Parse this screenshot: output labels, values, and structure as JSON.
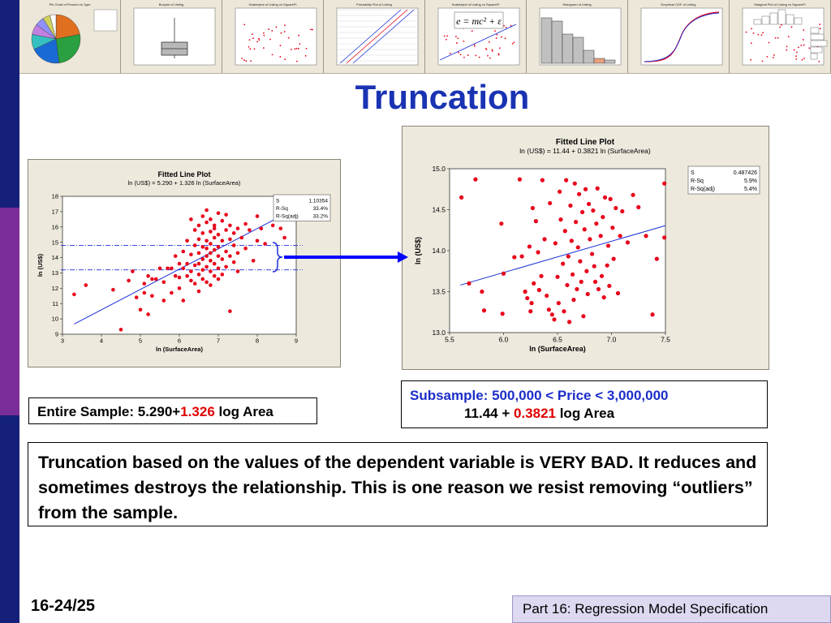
{
  "title": "Truncation",
  "colors": {
    "accent": "#1a33b3",
    "highlight": "#e00000",
    "points": "#e8001a",
    "fit_line": "#1a2fd6"
  },
  "thumbnails": [
    {
      "label": "Pie Chart of Percent vs Type",
      "kind": "pie"
    },
    {
      "label": "Boxplot of Listing",
      "kind": "boxplot"
    },
    {
      "label": "Scatterplot of Listing vs SquareFt",
      "kind": "scatter"
    },
    {
      "label": "Probability Plot of Listing",
      "kind": "probability"
    },
    {
      "label": "Scatterplot of Listing vs SquareFt",
      "kind": "equation",
      "equation": "e = mc² + ε"
    },
    {
      "label": "Histogram of Listing",
      "kind": "histogram"
    },
    {
      "label": "Empirical CDF of Listing",
      "kind": "cdf"
    },
    {
      "label": "Marginal Plot of Listing vs SquareFt",
      "kind": "marginal"
    }
  ],
  "left_caption": {
    "prefix": "Entire Sample: 5.290+",
    "coef": "1.326",
    "suffix": " log Area"
  },
  "right_caption": {
    "line1": "Subsample: 500,000 < Price < 3,000,000",
    "line2_prefix": "11.44 + ",
    "coef": "0.3821",
    "line2_suffix": " log Area"
  },
  "note": "Truncation based on the values of the dependent variable is VERY BAD. It reduces and sometimes destroys the relationship.  This is one reason we resist removing “outliers” from the sample.",
  "slide_number": "16-24/25",
  "footer": "Part 16: Regression Model Specification",
  "chart_data": [
    {
      "type": "scatter",
      "title": "Fitted Line Plot",
      "subtitle": "ln (US$) =  5.290 + 1.326 ln (SurfaceArea)",
      "xlabel": "ln (SurfaceArea)",
      "ylabel": "ln (US$)",
      "xlim": [
        3,
        9
      ],
      "ylim": [
        9,
        18
      ],
      "x_ticks": [
        3,
        4,
        5,
        6,
        7,
        8,
        9
      ],
      "y_ticks": [
        9,
        10,
        11,
        12,
        13,
        14,
        15,
        16,
        17,
        18
      ],
      "fit": {
        "intercept": 5.29,
        "slope": 1.326,
        "x_range": [
          3.3,
          8.7
        ]
      },
      "truncation_lines": [
        13.2,
        14.8
      ],
      "stats": [
        {
          "label": "S",
          "value": "1.10354"
        },
        {
          "label": "R-Sq",
          "value": "33.4%"
        },
        {
          "label": "R-Sq(adj)",
          "value": "33.2%"
        }
      ],
      "grid": false,
      "legend": "stats box top-right",
      "points": [
        [
          3.3,
          11.6
        ],
        [
          3.6,
          12.2
        ],
        [
          4.3,
          11.9
        ],
        [
          4.5,
          9.3
        ],
        [
          4.8,
          13.1
        ],
        [
          4.7,
          12.5
        ],
        [
          4.9,
          11.4
        ],
        [
          5,
          10.6
        ],
        [
          5.1,
          12.3
        ],
        [
          5.1,
          11.7
        ],
        [
          5.2,
          10.3
        ],
        [
          5.2,
          12.8
        ],
        [
          5.3,
          12.6
        ],
        [
          5.3,
          11.5
        ],
        [
          5.4,
          12.6
        ],
        [
          5.5,
          13.3
        ],
        [
          5.6,
          12.4
        ],
        [
          5.6,
          11.2
        ],
        [
          5.7,
          13.3
        ],
        [
          5.8,
          13.3
        ],
        [
          5.8,
          11.7
        ],
        [
          5.9,
          12.8
        ],
        [
          5.9,
          14.1
        ],
        [
          6,
          12.7
        ],
        [
          6,
          13.6
        ],
        [
          6,
          12.0
        ],
        [
          6.1,
          13.3
        ],
        [
          6.1,
          14.4
        ],
        [
          6.1,
          11.2
        ],
        [
          6.2,
          12.8
        ],
        [
          6.2,
          13.6
        ],
        [
          6.2,
          15.1
        ],
        [
          6.3,
          14.2
        ],
        [
          6.3,
          12.5
        ],
        [
          6.3,
          16.5
        ],
        [
          6.3,
          13.1
        ],
        [
          6.4,
          13.5
        ],
        [
          6.4,
          14.8
        ],
        [
          6.4,
          12.3
        ],
        [
          6.4,
          15.8
        ],
        [
          6.5,
          13.6
        ],
        [
          6.5,
          14.3
        ],
        [
          6.5,
          12.9
        ],
        [
          6.5,
          16.1
        ],
        [
          6.5,
          15.2
        ],
        [
          6.5,
          11.8
        ],
        [
          6.6,
          13.9
        ],
        [
          6.6,
          14.7
        ],
        [
          6.6,
          12.6
        ],
        [
          6.6,
          15.6
        ],
        [
          6.6,
          13.2
        ],
        [
          6.6,
          16.7
        ],
        [
          6.7,
          14.1
        ],
        [
          6.7,
          13.4
        ],
        [
          6.7,
          15.1
        ],
        [
          6.7,
          12.4
        ],
        [
          6.7,
          16.3
        ],
        [
          6.7,
          14.6
        ],
        [
          6.7,
          17.1
        ],
        [
          6.8,
          13.8
        ],
        [
          6.8,
          14.9
        ],
        [
          6.8,
          13.1
        ],
        [
          6.8,
          15.7
        ],
        [
          6.8,
          12.2
        ],
        [
          6.8,
          16.5
        ],
        [
          6.8,
          14.3
        ],
        [
          6.9,
          13.6
        ],
        [
          6.9,
          15.3
        ],
        [
          6.9,
          14.5
        ],
        [
          6.9,
          12.8
        ],
        [
          6.9,
          16.1
        ],
        [
          6.9,
          15.9
        ],
        [
          7,
          14.1
        ],
        [
          7,
          13.3
        ],
        [
          7,
          15.5
        ],
        [
          7,
          16.9
        ],
        [
          7,
          12.6
        ],
        [
          7,
          14.7
        ],
        [
          7.1,
          13.9
        ],
        [
          7.1,
          15.1
        ],
        [
          7.1,
          16.4
        ],
        [
          7.1,
          12.9
        ],
        [
          7.2,
          14.4
        ],
        [
          7.2,
          15.8
        ],
        [
          7.2,
          13.4
        ],
        [
          7.2,
          16.8
        ],
        [
          7.3,
          15.2
        ],
        [
          7.3,
          14.1
        ],
        [
          7.3,
          16.1
        ],
        [
          7.3,
          10.5
        ],
        [
          7.4,
          15.6
        ],
        [
          7.4,
          13.7
        ],
        [
          7.4,
          14.8
        ],
        [
          7.5,
          15.9
        ],
        [
          7.5,
          14.3
        ],
        [
          7.5,
          13.1
        ],
        [
          7.6,
          15.3
        ],
        [
          7.7,
          14.6
        ],
        [
          7.7,
          16.2
        ],
        [
          7.8,
          15.8
        ],
        [
          7.9,
          13.8
        ],
        [
          8,
          16.7
        ],
        [
          8,
          15.1
        ],
        [
          8.1,
          15.9
        ],
        [
          8.2,
          14.9
        ],
        [
          8.4,
          16.1
        ],
        [
          8.6,
          15.9
        ],
        [
          8.7,
          15.3
        ]
      ]
    },
    {
      "type": "scatter",
      "title": "Fitted Line Plot",
      "subtitle": "ln (US$) =  11.44 + 0.3821 ln (SurfaceArea)",
      "xlabel": "ln (SurfaceArea)",
      "ylabel": "ln (US$)",
      "xlim": [
        5.5,
        7.5
      ],
      "ylim": [
        13.0,
        15.0
      ],
      "x_ticks": [
        5.5,
        6.0,
        6.5,
        7.0,
        7.5
      ],
      "y_ticks": [
        13.0,
        13.5,
        14.0,
        14.5,
        15.0
      ],
      "fit": {
        "intercept": 11.44,
        "slope": 0.3821,
        "x_range": [
          5.6,
          7.5
        ]
      },
      "stats": [
        {
          "label": "S",
          "value": "0.487426"
        },
        {
          "label": "R-Sq",
          "value": "5.9%"
        },
        {
          "label": "R-Sq(adj)",
          "value": "5.4%"
        }
      ],
      "grid": false,
      "legend": "stats box top-right",
      "points": [
        [
          5.61,
          14.65
        ],
        [
          5.68,
          13.6
        ],
        [
          5.74,
          14.87
        ],
        [
          5.8,
          13.5
        ],
        [
          5.82,
          13.27
        ],
        [
          5.98,
          14.33
        ],
        [
          5.99,
          13.23
        ],
        [
          6,
          13.72
        ],
        [
          6.1,
          13.92
        ],
        [
          6.15,
          14.87
        ],
        [
          6.17,
          13.93
        ],
        [
          6.2,
          13.5
        ],
        [
          6.22,
          13.42
        ],
        [
          6.24,
          14.05
        ],
        [
          6.25,
          13.26
        ],
        [
          6.26,
          13.36
        ],
        [
          6.27,
          14.52
        ],
        [
          6.28,
          13.6
        ],
        [
          6.3,
          14.36
        ],
        [
          6.32,
          13.98
        ],
        [
          6.33,
          13.52
        ],
        [
          6.35,
          13.69
        ],
        [
          6.36,
          14.86
        ],
        [
          6.38,
          14.14
        ],
        [
          6.4,
          13.45
        ],
        [
          6.42,
          13.28
        ],
        [
          6.43,
          14.58
        ],
        [
          6.45,
          13.22
        ],
        [
          6.47,
          13.16
        ],
        [
          6.48,
          14.09
        ],
        [
          6.5,
          13.68
        ],
        [
          6.51,
          13.36
        ],
        [
          6.52,
          14.72
        ],
        [
          6.53,
          14.38
        ],
        [
          6.55,
          13.84
        ],
        [
          6.56,
          13.26
        ],
        [
          6.57,
          14.24
        ],
        [
          6.58,
          14.86
        ],
        [
          6.59,
          13.58
        ],
        [
          6.6,
          13.93
        ],
        [
          6.61,
          13.13
        ],
        [
          6.62,
          14.55
        ],
        [
          6.63,
          14.12
        ],
        [
          6.64,
          13.71
        ],
        [
          6.65,
          13.4
        ],
        [
          6.66,
          14.82
        ],
        [
          6.67,
          14.35
        ],
        [
          6.68,
          13.53
        ],
        [
          6.69,
          14.04
        ],
        [
          6.7,
          14.69
        ],
        [
          6.71,
          13.87
        ],
        [
          6.72,
          13.62
        ],
        [
          6.73,
          14.47
        ],
        [
          6.74,
          13.2
        ],
        [
          6.75,
          14.26
        ],
        [
          6.76,
          14.75
        ],
        [
          6.77,
          13.75
        ],
        [
          6.78,
          13.47
        ],
        [
          6.79,
          14.57
        ],
        [
          6.8,
          14.14
        ],
        [
          6.82,
          13.96
        ],
        [
          6.83,
          14.49
        ],
        [
          6.84,
          13.81
        ],
        [
          6.85,
          13.62
        ],
        [
          6.86,
          14.33
        ],
        [
          6.87,
          14.76
        ],
        [
          6.88,
          13.53
        ],
        [
          6.9,
          14.18
        ],
        [
          6.91,
          13.69
        ],
        [
          6.92,
          14.41
        ],
        [
          6.93,
          13.43
        ],
        [
          6.94,
          14.65
        ],
        [
          6.96,
          13.82
        ],
        [
          6.97,
          14.06
        ],
        [
          6.98,
          13.57
        ],
        [
          6.99,
          14.63
        ],
        [
          7.01,
          14.28
        ],
        [
          7.02,
          13.9
        ],
        [
          7.04,
          14.52
        ],
        [
          7.06,
          13.48
        ],
        [
          7.08,
          14.18
        ],
        [
          7.1,
          14.48
        ],
        [
          7.15,
          14.1
        ],
        [
          7.2,
          14.68
        ],
        [
          7.25,
          14.53
        ],
        [
          7.32,
          14.18
        ],
        [
          7.38,
          13.22
        ],
        [
          7.42,
          13.9
        ],
        [
          7.49,
          14.82
        ],
        [
          7.49,
          14.16
        ]
      ]
    }
  ]
}
